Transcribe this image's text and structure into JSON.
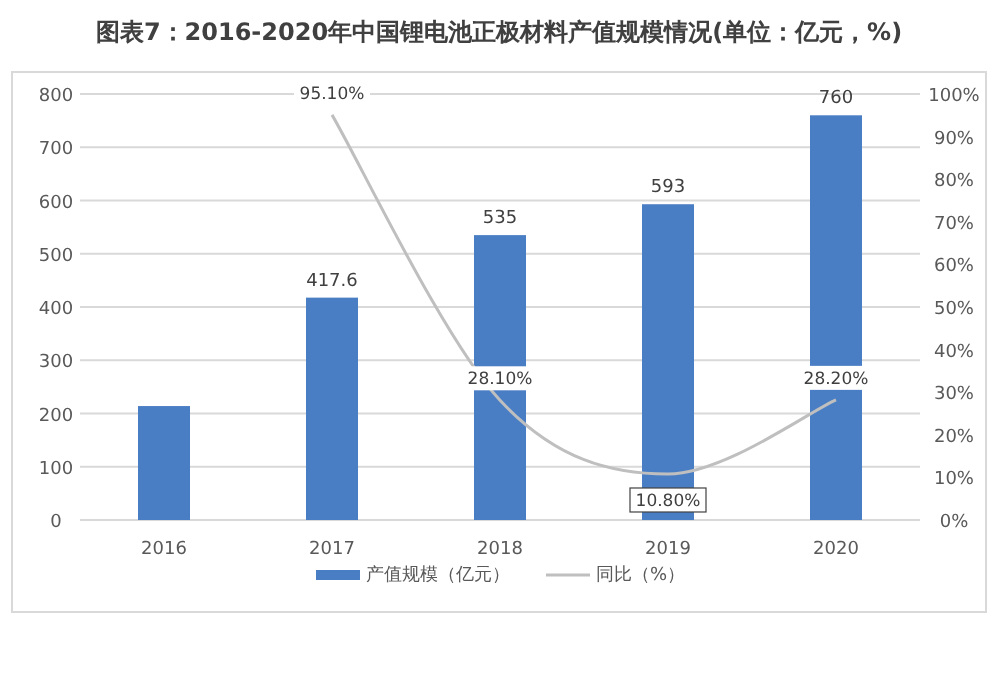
{
  "chart_data": {
    "type": "bar",
    "title": "图表7：2016-2020年中国锂电池正极材料产值规模情况(单位：亿元，%)",
    "categories": [
      "2016",
      "2017",
      "2018",
      "2019",
      "2020"
    ],
    "series": [
      {
        "name": "产值规模（亿元）",
        "color": "#4a7ec4",
        "values": [
          214,
          417.6,
          535,
          593,
          760
        ],
        "value_labels": [
          null,
          "417.6",
          "535",
          "593",
          "760"
        ]
      },
      {
        "name": "同比（%）",
        "type": "line",
        "axis": "y2",
        "color": "#bfbfbf",
        "values": [
          null,
          95.1,
          28.1,
          10.8,
          28.2
        ],
        "value_labels": [
          null,
          "95.10%",
          "28.10%",
          "10.80%",
          "28.20%"
        ]
      }
    ],
    "ylim": [
      0,
      800
    ],
    "yticks": [
      0,
      100,
      200,
      300,
      400,
      500,
      600,
      700,
      800
    ],
    "y2lim": [
      0,
      100
    ],
    "y2ticks": [
      {
        "value": 0,
        "label": "0%"
      },
      {
        "value": 10,
        "label": "10%"
      },
      {
        "value": 20,
        "label": "20%"
      },
      {
        "value": 30,
        "label": "30%"
      },
      {
        "value": 40,
        "label": "40%"
      },
      {
        "value": 50,
        "label": "50%"
      },
      {
        "value": 60,
        "label": "60%"
      },
      {
        "value": 70,
        "label": "70%"
      },
      {
        "value": 80,
        "label": "80%"
      },
      {
        "value": 90,
        "label": "90%"
      },
      {
        "value": 100,
        "label": "100%"
      }
    ],
    "grid": "y",
    "legend": "bottom",
    "marker": "none",
    "line_style": "solid"
  }
}
